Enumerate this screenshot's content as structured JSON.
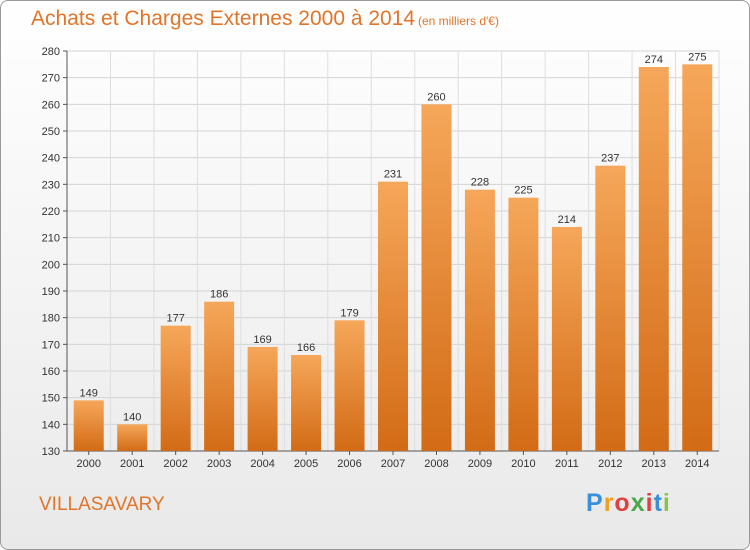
{
  "header": {
    "title": "Achats et Charges Externes 2000 à 2014",
    "subtitle": "(en milliers d'€)"
  },
  "footer": {
    "place": "VILLASAVARY",
    "logo_text": "Proxiti"
  },
  "colors": {
    "text_accent": "#e0752a",
    "bar_top": "#f6a75a",
    "bar_bottom": "#d26b16"
  },
  "chart_data": {
    "type": "bar",
    "title": "Achats et Charges Externes 2000 à 2014",
    "subtitle": "(en milliers d'€)",
    "categories": [
      "2000",
      "2001",
      "2002",
      "2003",
      "2004",
      "2005",
      "2006",
      "2007",
      "2008",
      "2009",
      "2010",
      "2011",
      "2012",
      "2013",
      "2014"
    ],
    "values": [
      149,
      140,
      177,
      186,
      169,
      166,
      179,
      231,
      260,
      228,
      225,
      214,
      237,
      274,
      275
    ],
    "ylim": [
      130,
      280
    ],
    "yticks": [
      130,
      140,
      150,
      160,
      170,
      180,
      190,
      200,
      210,
      220,
      230,
      240,
      250,
      260,
      270,
      280
    ],
    "grid": true,
    "data_labels": true
  }
}
